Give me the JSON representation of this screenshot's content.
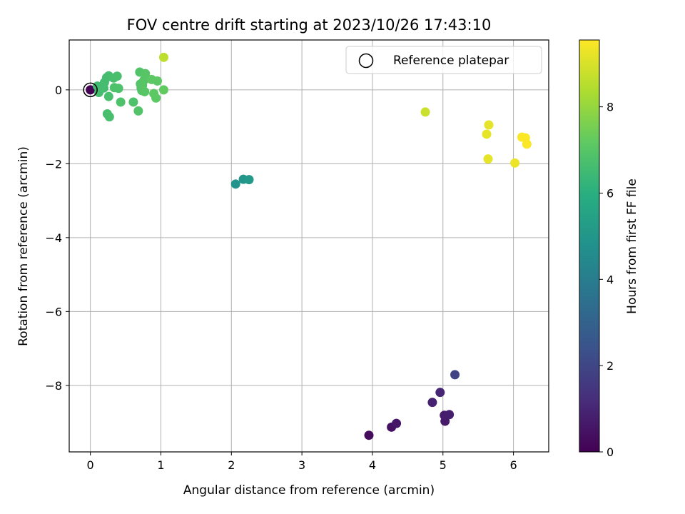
{
  "chart_data": {
    "type": "scatter",
    "title": "FOV centre drift starting at 2023/10/26 17:43:10",
    "xlabel": "Angular distance from reference (arcmin)",
    "ylabel": "Rotation from reference (arcmin)",
    "xlim": [
      -0.3,
      6.5
    ],
    "ylim": [
      -9.8,
      1.35
    ],
    "xticks": [
      0,
      1,
      2,
      3,
      4,
      5,
      6
    ],
    "yticks": [
      0,
      -2,
      -4,
      -6,
      -8
    ],
    "grid": true,
    "legend": {
      "location": "upper right",
      "entries": [
        "Reference platepar"
      ]
    },
    "reference_point": {
      "label": "Reference platepar",
      "x": 0,
      "y": 0
    },
    "colorbar": {
      "label": "Hours from first FF file",
      "range": [
        0,
        9.55
      ],
      "ticks": [
        0,
        2,
        4,
        6,
        8
      ],
      "colormap": "viridis"
    },
    "points": [
      {
        "x": 0.0,
        "y": 0.0,
        "hours": 0.0
      },
      {
        "x": 3.95,
        "y": -9.35,
        "hours": 0.3
      },
      {
        "x": 4.27,
        "y": -9.13,
        "hours": 0.45
      },
      {
        "x": 4.34,
        "y": -9.03,
        "hours": 0.55
      },
      {
        "x": 5.03,
        "y": -8.97,
        "hours": 0.65
      },
      {
        "x": 5.02,
        "y": -8.81,
        "hours": 0.75
      },
      {
        "x": 5.09,
        "y": -8.79,
        "hours": 0.8
      },
      {
        "x": 4.85,
        "y": -8.46,
        "hours": 0.9
      },
      {
        "x": 4.96,
        "y": -8.19,
        "hours": 1.0
      },
      {
        "x": 5.17,
        "y": -7.71,
        "hours": 1.9
      },
      {
        "x": 2.06,
        "y": -2.55,
        "hours": 4.9
      },
      {
        "x": 2.17,
        "y": -2.42,
        "hours": 5.0
      },
      {
        "x": 2.25,
        "y": -2.43,
        "hours": 5.1
      },
      {
        "x": 0.1,
        "y": 0.1,
        "hours": 6.5
      },
      {
        "x": 0.15,
        "y": 0.05,
        "hours": 6.5
      },
      {
        "x": 0.2,
        "y": 0.2,
        "hours": 6.6
      },
      {
        "x": 0.26,
        "y": 0.38,
        "hours": 6.6
      },
      {
        "x": 0.23,
        "y": 0.33,
        "hours": 6.6
      },
      {
        "x": 0.12,
        "y": -0.07,
        "hours": 6.6
      },
      {
        "x": 0.19,
        "y": 0.05,
        "hours": 6.6
      },
      {
        "x": 0.26,
        "y": -0.18,
        "hours": 6.7
      },
      {
        "x": 0.24,
        "y": -0.65,
        "hours": 6.7
      },
      {
        "x": 0.27,
        "y": -0.73,
        "hours": 6.7
      },
      {
        "x": 0.33,
        "y": 0.32,
        "hours": 6.7
      },
      {
        "x": 0.38,
        "y": 0.37,
        "hours": 6.7
      },
      {
        "x": 0.34,
        "y": 0.06,
        "hours": 6.8
      },
      {
        "x": 0.4,
        "y": 0.04,
        "hours": 6.8
      },
      {
        "x": 0.43,
        "y": -0.33,
        "hours": 6.8
      },
      {
        "x": 0.61,
        "y": -0.33,
        "hours": 6.8
      },
      {
        "x": 0.68,
        "y": -0.57,
        "hours": 6.9
      },
      {
        "x": 0.7,
        "y": 0.48,
        "hours": 6.9
      },
      {
        "x": 0.71,
        "y": 0.16,
        "hours": 6.9
      },
      {
        "x": 0.72,
        "y": 0.05,
        "hours": 6.9
      },
      {
        "x": 0.73,
        "y": -0.02,
        "hours": 6.9
      },
      {
        "x": 0.76,
        "y": 0.26,
        "hours": 7.0
      },
      {
        "x": 0.78,
        "y": 0.44,
        "hours": 7.0
      },
      {
        "x": 0.74,
        "y": 0.12,
        "hours": 7.0
      },
      {
        "x": 0.77,
        "y": -0.05,
        "hours": 7.0
      },
      {
        "x": 0.87,
        "y": 0.28,
        "hours": 7.1
      },
      {
        "x": 0.9,
        "y": -0.1,
        "hours": 7.1
      },
      {
        "x": 0.93,
        "y": -0.22,
        "hours": 7.1
      },
      {
        "x": 0.95,
        "y": 0.24,
        "hours": 7.1
      },
      {
        "x": 1.04,
        "y": 0.0,
        "hours": 7.2
      },
      {
        "x": 1.04,
        "y": 0.88,
        "hours": 8.6
      },
      {
        "x": 4.75,
        "y": -0.6,
        "hours": 8.8
      },
      {
        "x": 5.65,
        "y": -0.95,
        "hours": 9.2
      },
      {
        "x": 5.62,
        "y": -1.2,
        "hours": 9.2
      },
      {
        "x": 5.64,
        "y": -1.87,
        "hours": 9.2
      },
      {
        "x": 6.02,
        "y": -1.98,
        "hours": 9.3
      },
      {
        "x": 6.12,
        "y": -1.28,
        "hours": 9.5
      },
      {
        "x": 6.17,
        "y": -1.3,
        "hours": 9.5
      },
      {
        "x": 6.19,
        "y": -1.47,
        "hours": 9.5
      }
    ]
  }
}
